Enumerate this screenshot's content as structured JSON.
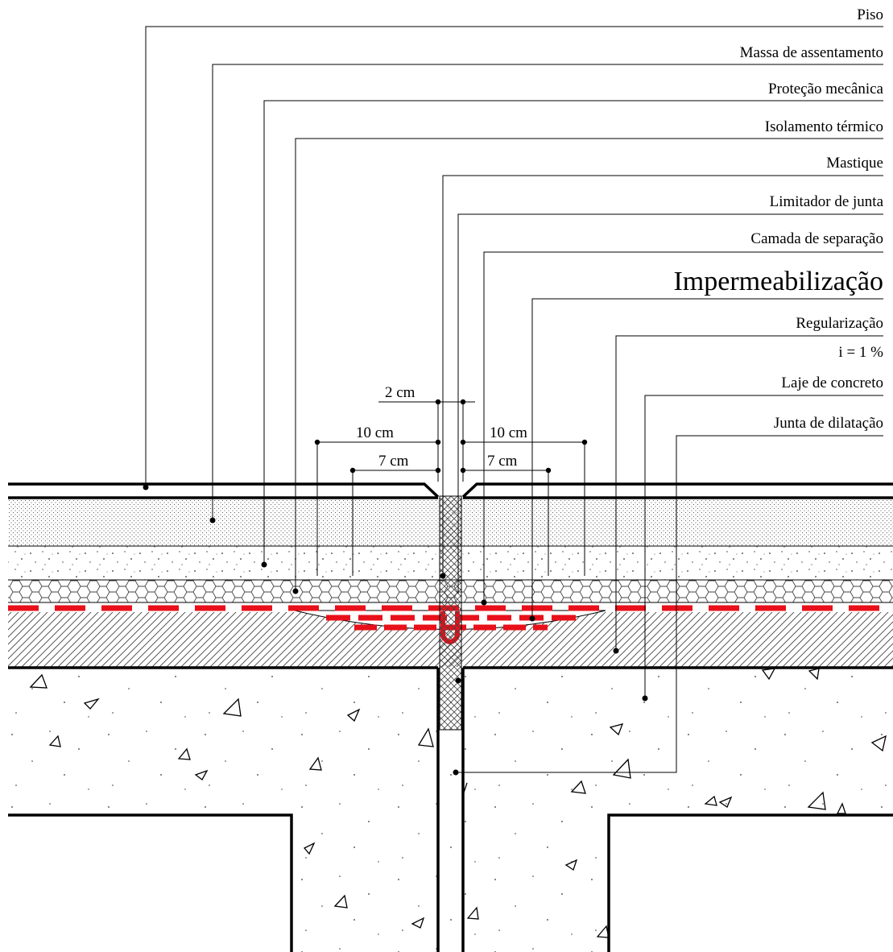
{
  "labels": {
    "piso": "Piso",
    "massa": "Massa de assentamento",
    "protecao": "Proteção mecânica",
    "isolamento": "Isolamento térmico",
    "mastique": "Mastique",
    "limitador": "Limitador de junta",
    "separacao": "Camada de separação",
    "impermeabilizacao": "Impermeabilização",
    "regularizacao": "Regularização",
    "inclinacao": "i = 1 %",
    "laje": "Laje de concreto",
    "junta": "Junta de dilatação"
  },
  "dimensions": {
    "joint_width": "2 cm",
    "left_outer": "10 cm",
    "right_outer": "10 cm",
    "left_inner": "7 cm",
    "right_inner": "7 cm"
  },
  "colors": {
    "waterproofing": "#e8101a",
    "line": "#000000"
  }
}
